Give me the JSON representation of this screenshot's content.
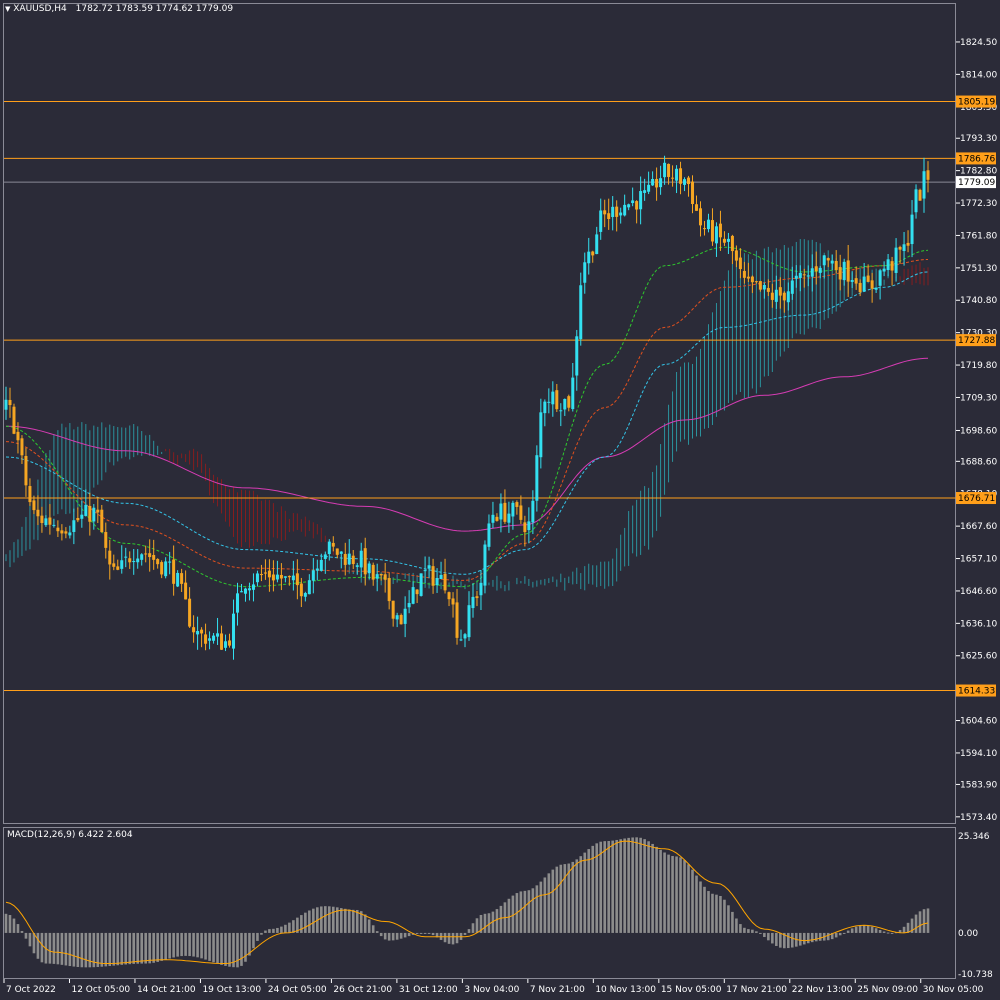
{
  "header": {
    "symbol": "XAUUSD,H4",
    "ohlc": "1782.72 1783.59 1774.62 1779.09"
  },
  "macd": {
    "title": "MACD(12,26,9) 6.422 2.604",
    "axis_labels": [
      "25.346",
      "0.00",
      "-10.738"
    ]
  },
  "colors": {
    "background": "#2b2b38",
    "bull": "#33e0f0",
    "bear": "#f5a623",
    "hline": "#ff9f1a",
    "ma_slow": "#d63cb4",
    "ma_kijun": "#33c4e8",
    "ma_mid": "#e0501e",
    "ma_fast": "#2ec82e",
    "cloud_bull": "#2b9ea8",
    "cloud_bear": "#8f1c1c",
    "macd_hist": "#8c8c8c",
    "macd_signal": "#ffa500"
  },
  "price_axis": [
    "1824.50",
    "1814.00",
    "1803.50",
    "1793.30",
    "1782.80",
    "1772.30",
    "1761.80",
    "1751.30",
    "1740.80",
    "1730.30",
    "1719.80",
    "1709.30",
    "1698.60",
    "1688.60",
    "1678.10",
    "1667.60",
    "1657.10",
    "1646.60",
    "1636.10",
    "1625.60",
    "1604.60",
    "1594.10",
    "1583.90",
    "1573.40"
  ],
  "price_range": [
    1571.4,
    1836.8
  ],
  "current_price": {
    "label": "1779.09",
    "value": 1779.09
  },
  "levels": [
    {
      "label": "1805.19",
      "value": 1805.19
    },
    {
      "label": "1786.76",
      "value": 1786.76
    },
    {
      "label": "1727.88",
      "value": 1727.88
    },
    {
      "label": "1676.71",
      "value": 1676.71
    },
    {
      "label": "1614.33",
      "value": 1614.33
    }
  ],
  "time_axis": [
    "7 Oct 2022",
    "12 Oct 05:00",
    "14 Oct 21:00",
    "19 Oct 13:00",
    "24 Oct 05:00",
    "26 Oct 21:00",
    "31 Oct 12:00",
    "3 Nov 04:00",
    "7 Nov 21:00",
    "10 Nov 13:00",
    "15 Nov 05:00",
    "17 Nov 21:00",
    "22 Nov 13:00",
    "25 Nov 09:00",
    "30 Nov 05:00"
  ],
  "chart_data": {
    "type": "candlestick",
    "bars": 232,
    "price_keypoints": [
      [
        0,
        1706
      ],
      [
        8,
        1670
      ],
      [
        15,
        1668
      ],
      [
        22,
        1672
      ],
      [
        27,
        1652
      ],
      [
        33,
        1660
      ],
      [
        40,
        1655
      ],
      [
        49,
        1632
      ],
      [
        55,
        1630
      ],
      [
        60,
        1650
      ],
      [
        66,
        1652
      ],
      [
        74,
        1648
      ],
      [
        80,
        1660
      ],
      [
        88,
        1657
      ],
      [
        93,
        1650
      ],
      [
        99,
        1638
      ],
      [
        105,
        1652
      ],
      [
        110,
        1650
      ],
      [
        114,
        1632
      ],
      [
        118,
        1646
      ],
      [
        122,
        1672
      ],
      [
        127,
        1672
      ],
      [
        131,
        1668
      ],
      [
        135,
        1710
      ],
      [
        141,
        1708
      ],
      [
        145,
        1754
      ],
      [
        150,
        1768
      ],
      [
        155,
        1772
      ],
      [
        160,
        1774
      ],
      [
        165,
        1782
      ],
      [
        170,
        1780
      ],
      [
        175,
        1764
      ],
      [
        180,
        1760
      ],
      [
        186,
        1745
      ],
      [
        193,
        1742
      ],
      [
        199,
        1747
      ],
      [
        205,
        1754
      ],
      [
        211,
        1750
      ],
      [
        216,
        1745
      ],
      [
        221,
        1752
      ],
      [
        225,
        1757
      ],
      [
        228,
        1774
      ],
      [
        231,
        1781
      ]
    ],
    "ma_slow_keypoints": [
      [
        0,
        1700
      ],
      [
        30,
        1692
      ],
      [
        60,
        1680
      ],
      [
        90,
        1674
      ],
      [
        115,
        1666
      ],
      [
        130,
        1668
      ],
      [
        150,
        1690
      ],
      [
        170,
        1702
      ],
      [
        190,
        1710
      ],
      [
        210,
        1716
      ],
      [
        231,
        1722
      ]
    ],
    "ma_kijun_keypoints": [
      [
        0,
        1690
      ],
      [
        30,
        1675
      ],
      [
        60,
        1660
      ],
      [
        90,
        1657
      ],
      [
        115,
        1652
      ],
      [
        130,
        1660
      ],
      [
        150,
        1690
      ],
      [
        165,
        1720
      ],
      [
        180,
        1732
      ],
      [
        200,
        1736
      ],
      [
        220,
        1745
      ],
      [
        231,
        1750
      ]
    ],
    "ma_mid_keypoints": [
      [
        0,
        1695
      ],
      [
        30,
        1668
      ],
      [
        60,
        1654
      ],
      [
        90,
        1653
      ],
      [
        115,
        1650
      ],
      [
        130,
        1662
      ],
      [
        150,
        1706
      ],
      [
        165,
        1732
      ],
      [
        180,
        1745
      ],
      [
        200,
        1748
      ],
      [
        220,
        1752
      ],
      [
        231,
        1754
      ]
    ],
    "ma_fast_keypoints": [
      [
        0,
        1700
      ],
      [
        30,
        1662
      ],
      [
        60,
        1648
      ],
      [
        90,
        1651
      ],
      [
        115,
        1648
      ],
      [
        130,
        1665
      ],
      [
        150,
        1720
      ],
      [
        165,
        1752
      ],
      [
        180,
        1758
      ],
      [
        200,
        1750
      ],
      [
        220,
        1752
      ],
      [
        231,
        1757
      ]
    ],
    "cloud_a_keypoints": [
      [
        0,
        1660
      ],
      [
        15,
        1700
      ],
      [
        30,
        1700
      ],
      [
        45,
        1688
      ],
      [
        60,
        1662
      ],
      [
        75,
        1665
      ],
      [
        90,
        1652
      ],
      [
        115,
        1650
      ],
      [
        135,
        1650
      ],
      [
        150,
        1655
      ],
      [
        160,
        1680
      ],
      [
        170,
        1720
      ],
      [
        185,
        1755
      ],
      [
        200,
        1760
      ],
      [
        215,
        1750
      ],
      [
        231,
        1745
      ]
    ],
    "cloud_b_keypoints": [
      [
        0,
        1655
      ],
      [
        15,
        1672
      ],
      [
        30,
        1690
      ],
      [
        45,
        1692
      ],
      [
        60,
        1678
      ],
      [
        75,
        1670
      ],
      [
        90,
        1650
      ],
      [
        115,
        1648
      ],
      [
        135,
        1648
      ],
      [
        150,
        1648
      ],
      [
        160,
        1660
      ],
      [
        170,
        1695
      ],
      [
        185,
        1710
      ],
      [
        200,
        1730
      ],
      [
        215,
        1745
      ],
      [
        231,
        1752
      ]
    ],
    "macd_range": [
      -10.738,
      25.346
    ],
    "macd_keypoints": [
      [
        0,
        5
      ],
      [
        10,
        -8
      ],
      [
        20,
        -9
      ],
      [
        35,
        -8
      ],
      [
        45,
        -6
      ],
      [
        58,
        -9
      ],
      [
        66,
        1
      ],
      [
        80,
        7
      ],
      [
        88,
        6
      ],
      [
        96,
        -2
      ],
      [
        105,
        0
      ],
      [
        112,
        -3
      ],
      [
        120,
        5
      ],
      [
        130,
        11
      ],
      [
        140,
        18
      ],
      [
        150,
        24
      ],
      [
        158,
        25
      ],
      [
        168,
        20
      ],
      [
        178,
        10
      ],
      [
        186,
        1
      ],
      [
        195,
        -4
      ],
      [
        205,
        -2
      ],
      [
        215,
        2
      ],
      [
        222,
        0
      ],
      [
        231,
        6.4
      ]
    ],
    "macd_signal_keypoints": [
      [
        0,
        8
      ],
      [
        12,
        -5
      ],
      [
        25,
        -8
      ],
      [
        40,
        -7
      ],
      [
        55,
        -8
      ],
      [
        70,
        0
      ],
      [
        85,
        6
      ],
      [
        95,
        3
      ],
      [
        105,
        -1
      ],
      [
        115,
        -1
      ],
      [
        125,
        4
      ],
      [
        135,
        10
      ],
      [
        145,
        19
      ],
      [
        155,
        24
      ],
      [
        165,
        22
      ],
      [
        178,
        13
      ],
      [
        190,
        1
      ],
      [
        200,
        -2
      ],
      [
        215,
        2
      ],
      [
        225,
        0
      ],
      [
        231,
        2.6
      ]
    ]
  }
}
